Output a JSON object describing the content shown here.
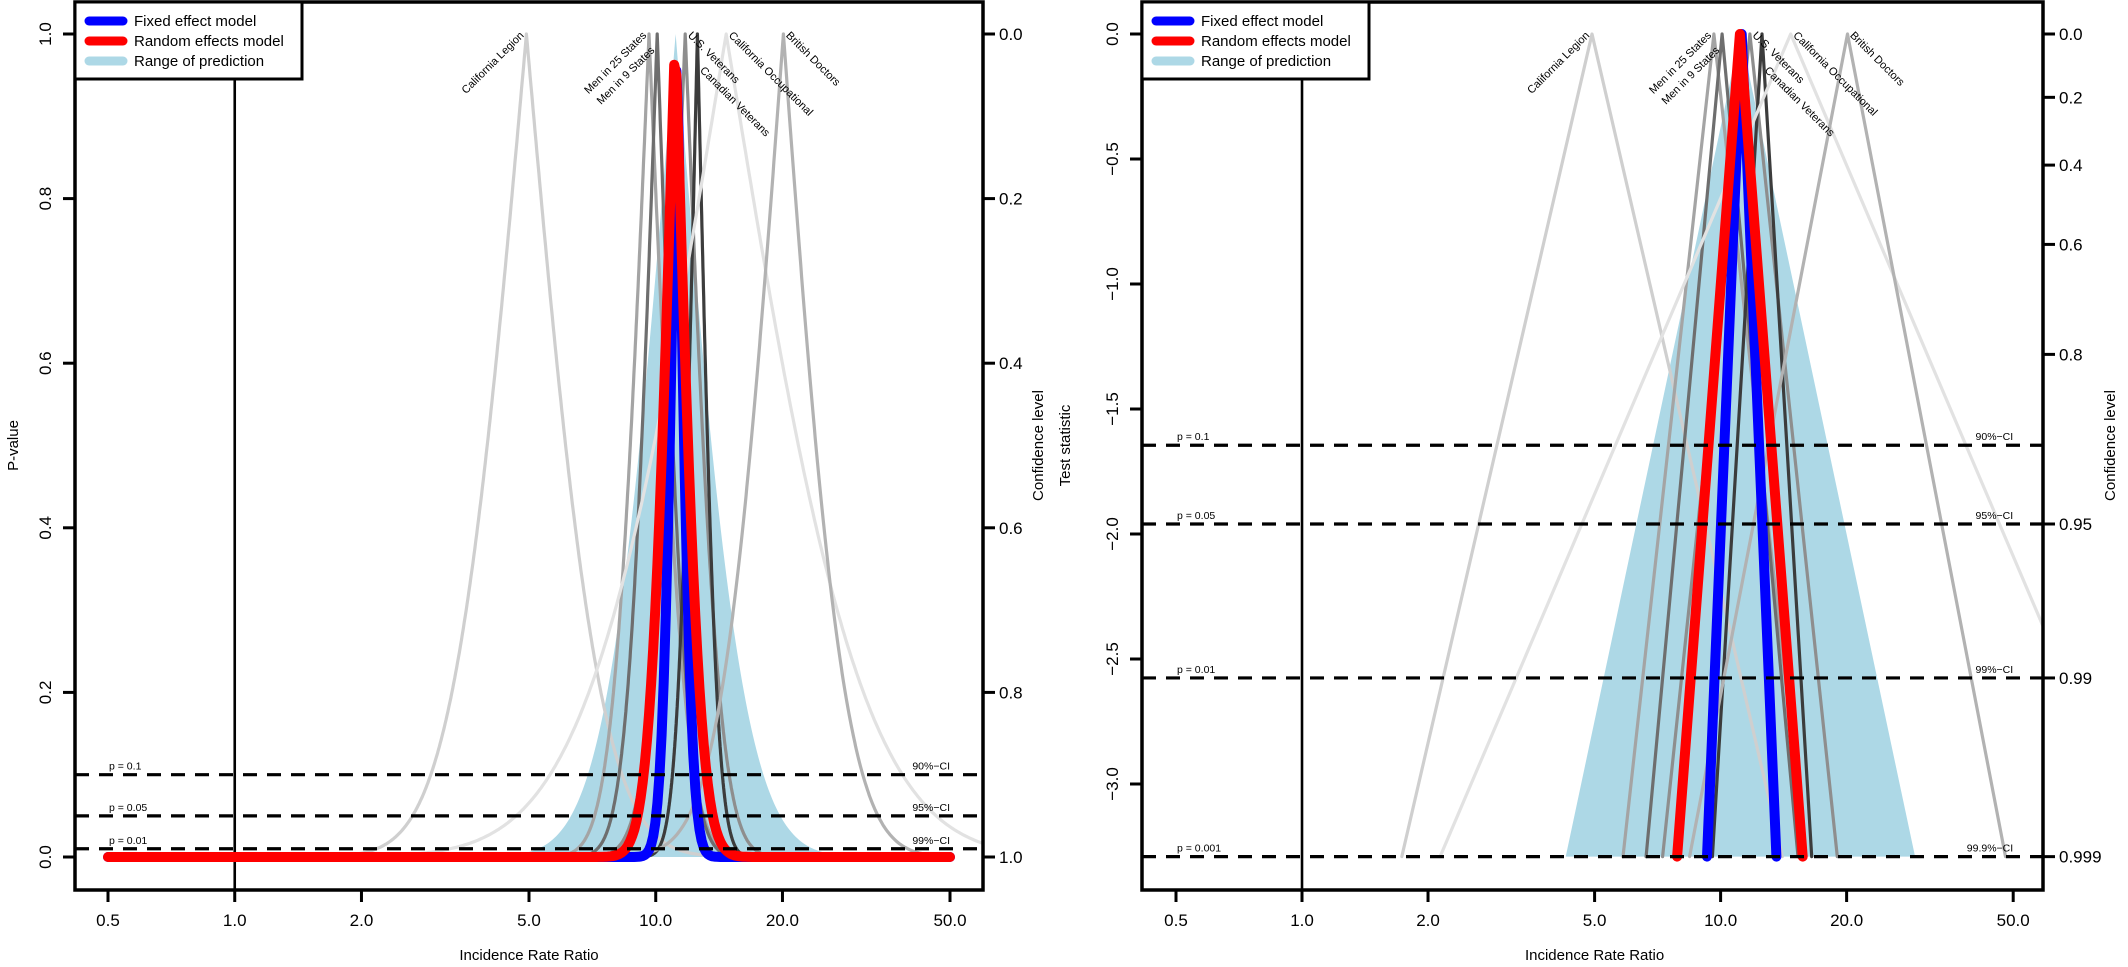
{
  "chart_data": [
    {
      "type": "line",
      "panel": "p-value drapery plot",
      "xlabel": "Incidence Rate Ratio",
      "ylabel": "P-value",
      "y2label": "Confidence level",
      "xscale": "log",
      "xlim": [
        0.5,
        50
      ],
      "ylim": [
        0,
        1
      ],
      "xticks": [
        0.5,
        1,
        2,
        5,
        10,
        20,
        50
      ],
      "xtick_labels": [
        "0.5",
        "1.0",
        "2.0",
        "5.0",
        "10.0",
        "20.0",
        "50.0"
      ],
      "yticks": [
        0,
        0.2,
        0.4,
        0.6,
        0.8,
        1.0
      ],
      "ytick_labels": [
        "0.0",
        "0.2",
        "0.4",
        "0.6",
        "0.8",
        "1.0"
      ],
      "y2ticks": [
        0,
        0.2,
        0.4,
        0.6,
        0.8,
        1.0
      ],
      "y2tick_labels": [
        "0.0",
        "0.2",
        "0.4",
        "0.6",
        "0.8",
        "1.0"
      ],
      "reference_line": 1,
      "hlines": [
        {
          "p": 0.1,
          "left": "p = 0.1",
          "right": "90%−CI"
        },
        {
          "p": 0.05,
          "left": "p = 0.05",
          "right": "95%−CI"
        },
        {
          "p": 0.01,
          "left": "p = 0.01",
          "right": "99%−CI"
        }
      ],
      "legend": {
        "position": "top-left",
        "items": [
          {
            "label": "Fixed effect model",
            "color": "#0000ff"
          },
          {
            "label": "Random effects model",
            "color": "#ff0000"
          },
          {
            "label": "Range of prediction",
            "color": "#add8e6"
          }
        ]
      }
    },
    {
      "type": "line",
      "panel": "test-statistic drapery plot",
      "xlabel": "Incidence Rate Ratio",
      "ylabel": "Test statistic",
      "y2label": "Confidence level",
      "xscale": "log",
      "xlim": [
        0.5,
        50
      ],
      "ylim": [
        -3.29,
        0
      ],
      "xticks": [
        0.5,
        1,
        2,
        5,
        10,
        20,
        50
      ],
      "xtick_labels": [
        "0.5",
        "1.0",
        "2.0",
        "5.0",
        "10.0",
        "20.0",
        "50.0"
      ],
      "yticks": [
        0,
        -0.5,
        -1.0,
        -1.5,
        -2.0,
        -2.5,
        -3.0
      ],
      "ytick_labels": [
        "0.0",
        "−0.5",
        "−1.0",
        "−1.5",
        "−2.0",
        "−2.5",
        "−3.0"
      ],
      "y2ticks": [
        0,
        0.2,
        0.4,
        0.6,
        0.8,
        0.95,
        0.99,
        0.999
      ],
      "y2tick_labels": [
        "0.0",
        "0.2",
        "0.4",
        "0.6",
        "0.8",
        "0.95",
        "0.99",
        "0.999"
      ],
      "reference_line": 1,
      "hlines": [
        {
          "p": 0.1,
          "left": "p = 0.1",
          "right": "90%−CI"
        },
        {
          "p": 0.05,
          "left": "p = 0.05",
          "right": "95%−CI"
        },
        {
          "p": 0.01,
          "left": "p = 0.01",
          "right": "99%−CI"
        },
        {
          "p": 0.001,
          "left": "p = 0.001",
          "right": "99.9%−CI"
        }
      ],
      "legend": {
        "position": "top-left",
        "items": [
          {
            "label": "Fixed effect model",
            "color": "#0000ff"
          },
          {
            "label": "Random effects model",
            "color": "#ff0000"
          },
          {
            "label": "Range of prediction",
            "color": "#add8e6"
          }
        ]
      }
    }
  ],
  "studies": [
    {
      "name": "California Legion",
      "estimate": 4.93,
      "se_log": 0.318,
      "color": "#cfcfcf"
    },
    {
      "name": "Men in 25 States",
      "estimate": 9.64,
      "se_log": 0.152,
      "color": "#a4a4a4"
    },
    {
      "name": "Men in 9 States",
      "estimate": 10.08,
      "se_log": 0.127,
      "color": "#6e6e6e"
    },
    {
      "name": "U.S. Veterans",
      "estimate": 11.75,
      "se_log": 0.146,
      "color": "#8e8e8e"
    },
    {
      "name": "Canadian Veterans",
      "estimate": 12.56,
      "se_log": 0.083,
      "color": "#3c3c3c"
    },
    {
      "name": "California Occupational",
      "estimate": 14.7,
      "se_log": 0.586,
      "color": "#e2e2e2"
    },
    {
      "name": "British Doctors",
      "estimate": 20.1,
      "se_log": 0.264,
      "color": "#b2b2b2"
    }
  ],
  "pooled": {
    "fixed": {
      "estimate": 11.23,
      "se_log": 0.058,
      "color": "#0000ff"
    },
    "random": {
      "estimate": 11.12,
      "se_log": 0.105,
      "color": "#ff0000"
    },
    "prediction": {
      "estimate": 11.15,
      "se_log": 0.292,
      "color": "#add8e6"
    }
  }
}
